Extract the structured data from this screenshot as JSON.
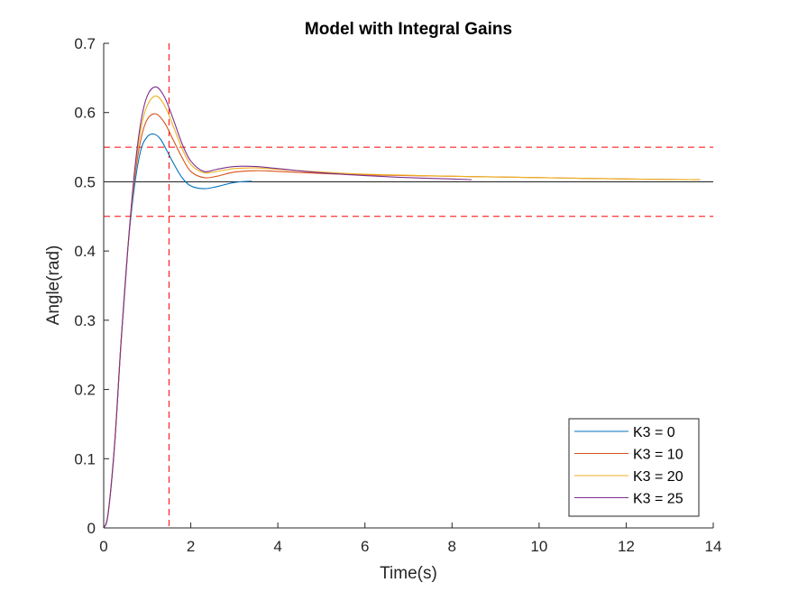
{
  "chart_data": {
    "type": "line",
    "title": "Model with Integral Gains",
    "xlabel": "Time(s)",
    "ylabel": "Angle(rad)",
    "xlim": [
      0,
      14
    ],
    "ylim": [
      0,
      0.7
    ],
    "xticks": [
      "0",
      "2",
      "4",
      "6",
      "8",
      "10",
      "12",
      "14"
    ],
    "yticks": [
      "0",
      "0.1",
      "0.2",
      "0.3",
      "0.4",
      "0.5",
      "0.6",
      "0.7"
    ],
    "grid": false,
    "legend_position": "bottom-right",
    "series": [
      {
        "name": "K3 = 0",
        "color": "#0072BD",
        "x": [
          0,
          0.1,
          0.25,
          0.4,
          0.55,
          0.7,
          0.85,
          1.0,
          1.15,
          1.3,
          1.45,
          1.6,
          1.8,
          2.0,
          2.3,
          2.6,
          3.0,
          3.4
        ],
        "y": [
          0,
          0.02,
          0.12,
          0.27,
          0.4,
          0.49,
          0.545,
          0.565,
          0.569,
          0.562,
          0.545,
          0.527,
          0.506,
          0.494,
          0.49,
          0.493,
          0.499,
          0.501
        ]
      },
      {
        "name": "K3 = 10",
        "color": "#D95319",
        "x": [
          0,
          0.1,
          0.25,
          0.4,
          0.55,
          0.7,
          0.85,
          1.0,
          1.2,
          1.4,
          1.6,
          1.8,
          2.0,
          2.3,
          2.6,
          3.0,
          3.5,
          4.0,
          5,
          6,
          8,
          10,
          12,
          13.7
        ],
        "y": [
          0,
          0.02,
          0.12,
          0.27,
          0.4,
          0.5,
          0.56,
          0.59,
          0.598,
          0.585,
          0.56,
          0.535,
          0.515,
          0.506,
          0.508,
          0.514,
          0.516,
          0.515,
          0.512,
          0.51,
          0.508,
          0.506,
          0.504,
          0.503
        ]
      },
      {
        "name": "K3 = 20",
        "color": "#EDB120",
        "x": [
          0,
          0.1,
          0.25,
          0.4,
          0.55,
          0.7,
          0.85,
          1.0,
          1.2,
          1.4,
          1.6,
          1.8,
          2.0,
          2.3,
          2.6,
          3.0,
          3.5,
          4.0,
          5,
          6,
          8,
          10,
          12,
          13.7
        ],
        "y": [
          0,
          0.02,
          0.12,
          0.27,
          0.4,
          0.505,
          0.575,
          0.61,
          0.624,
          0.61,
          0.58,
          0.548,
          0.525,
          0.513,
          0.515,
          0.519,
          0.52,
          0.518,
          0.514,
          0.511,
          0.508,
          0.506,
          0.504,
          0.503
        ]
      },
      {
        "name": "K3 = 25",
        "color": "#7E2F8E",
        "x": [
          0,
          0.1,
          0.25,
          0.4,
          0.55,
          0.7,
          0.85,
          1.0,
          1.2,
          1.4,
          1.6,
          1.8,
          2.0,
          2.3,
          2.6,
          3.0,
          3.5,
          4.0,
          5,
          6,
          7,
          8,
          8.45
        ],
        "y": [
          0,
          0.02,
          0.12,
          0.27,
          0.4,
          0.51,
          0.585,
          0.624,
          0.637,
          0.622,
          0.59,
          0.555,
          0.53,
          0.515,
          0.518,
          0.522,
          0.522,
          0.519,
          0.513,
          0.509,
          0.506,
          0.504,
          0.503
        ]
      }
    ],
    "reference_lines": [
      {
        "orientation": "horizontal",
        "value": 0.5,
        "style": "solid",
        "color": "#000000"
      },
      {
        "orientation": "horizontal",
        "value": 0.55,
        "style": "dashed",
        "color": "#FF0000"
      },
      {
        "orientation": "horizontal",
        "value": 0.45,
        "style": "dashed",
        "color": "#FF0000"
      },
      {
        "orientation": "vertical",
        "value": 1.5,
        "style": "dashed",
        "color": "#FF0000"
      }
    ]
  }
}
